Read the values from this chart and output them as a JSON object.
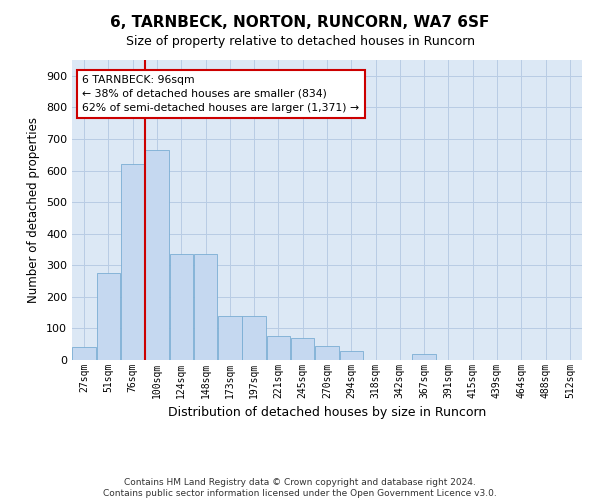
{
  "title": "6, TARNBECK, NORTON, RUNCORN, WA7 6SF",
  "subtitle": "Size of property relative to detached houses in Runcorn",
  "xlabel": "Distribution of detached houses by size in Runcorn",
  "ylabel": "Number of detached properties",
  "bar_color": "#c5d8f0",
  "bar_edge_color": "#7aadd4",
  "background_color": "#ffffff",
  "axes_bg_color": "#dce8f5",
  "grid_color": "#b8cce4",
  "bin_labels": [
    "27sqm",
    "51sqm",
    "76sqm",
    "100sqm",
    "124sqm",
    "148sqm",
    "173sqm",
    "197sqm",
    "221sqm",
    "245sqm",
    "270sqm",
    "294sqm",
    "318sqm",
    "342sqm",
    "367sqm",
    "391sqm",
    "415sqm",
    "439sqm",
    "464sqm",
    "488sqm",
    "512sqm"
  ],
  "bar_values": [
    40,
    275,
    620,
    665,
    335,
    335,
    140,
    140,
    75,
    70,
    45,
    30,
    0,
    0,
    20,
    0,
    0,
    0,
    0,
    0,
    0
  ],
  "vline_color": "#cc0000",
  "annotation_text": "6 TARNBECK: 96sqm\n← 38% of detached houses are smaller (834)\n62% of semi-detached houses are larger (1,371) →",
  "annotation_box_color": "#ffffff",
  "annotation_box_edge": "#cc0000",
  "ylim": [
    0,
    950
  ],
  "yticks": [
    0,
    100,
    200,
    300,
    400,
    500,
    600,
    700,
    800,
    900
  ],
  "footer": "Contains HM Land Registry data © Crown copyright and database right 2024.\nContains public sector information licensed under the Open Government Licence v3.0.",
  "figsize": [
    6.0,
    5.0
  ],
  "dpi": 100
}
